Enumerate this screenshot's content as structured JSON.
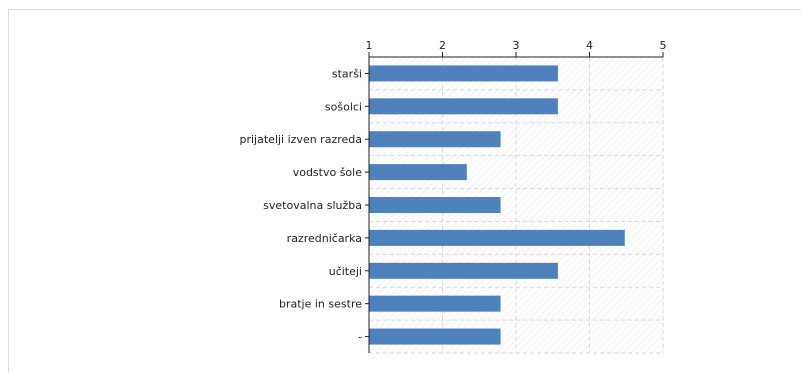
{
  "chart_data": {
    "type": "bar",
    "orientation": "horizontal",
    "categories": [
      "starši",
      "sošolci",
      "prijatelji izven razreda",
      "vodstvo šole",
      "svetovalna služba",
      "razredničarka",
      "učiteji",
      "bratje in sestre",
      "-"
    ],
    "values": [
      3.57,
      3.57,
      2.79,
      2.33,
      2.79,
      4.48,
      3.57,
      2.79,
      2.79
    ],
    "xlim": [
      1,
      5
    ],
    "xticks": [
      "1",
      "2",
      "3",
      "4",
      "5"
    ],
    "x_axis_position": "top",
    "grid": true,
    "legend": "none",
    "title": "",
    "xlabel": "",
    "ylabel": "",
    "colors": {
      "bar": "#4f81bd",
      "grid": "#d9d9d9",
      "axis": "#222222",
      "hatch": "#e6e6e6"
    }
  }
}
